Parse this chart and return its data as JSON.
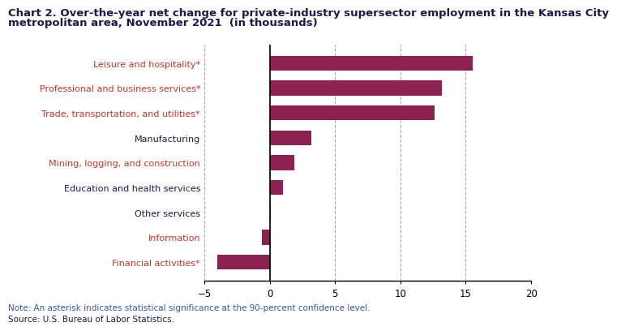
{
  "title_line1": "Chart 2. Over-the-year net change for private-industry supersector employment in the Kansas City",
  "title_line2": "metropolitan area, November 2021  (in thousands)",
  "categories": [
    "Financial activities*",
    "Information",
    "Other services",
    "Education and health services",
    "Mining, logging, and construction",
    "Manufacturing",
    "Trade, transportation, and utilities*",
    "Professional and business services*",
    "Leisure and hospitality*"
  ],
  "label_colors": [
    "#c0392b",
    "#c0392b",
    "#1a1a4e",
    "#1a1a4e",
    "#c0392b",
    "#1a1a4e",
    "#c0392b",
    "#c0392b",
    "#c0392b"
  ],
  "values": [
    -4.0,
    -0.6,
    0.1,
    1.0,
    1.9,
    3.2,
    12.6,
    13.2,
    15.5
  ],
  "bar_color": "#8B2252",
  "xlim": [
    -5,
    20
  ],
  "xticks": [
    -5,
    0,
    5,
    10,
    15,
    20
  ],
  "grid_color": "#aaaaaa",
  "note": "Note: An asterisk indicates statistical significance at the 90-percent confidence level.",
  "source": "Source: U.S. Bureau of Labor Statistics.",
  "bg_color": "#ffffff",
  "title_fontsize": 9.5,
  "label_fontsize": 8.0,
  "tick_fontsize": 8.5,
  "note_fontsize": 7.5,
  "note_color": "#3355bb",
  "source_color": "#1a1a4e",
  "title_color": "#1a1a4e"
}
